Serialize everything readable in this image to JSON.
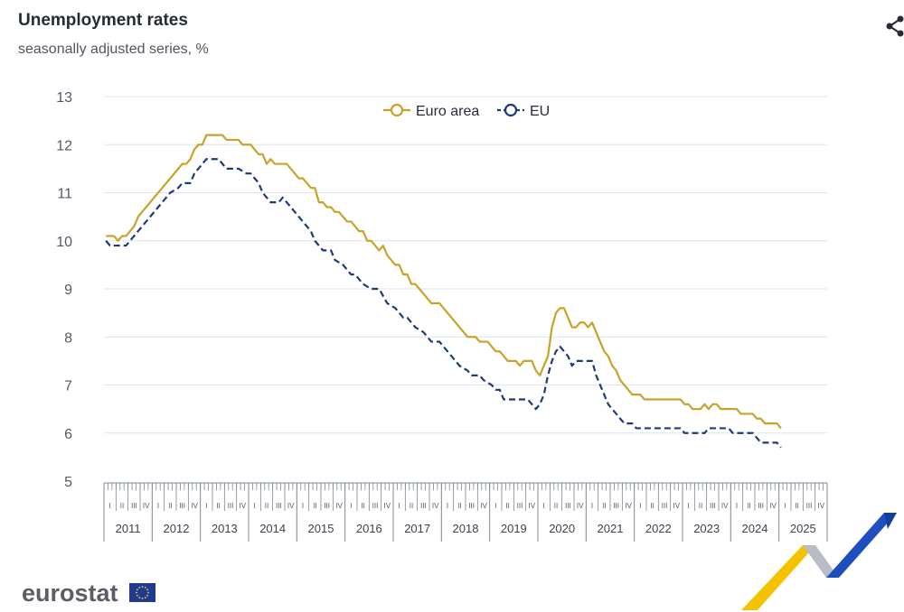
{
  "header": {
    "title": "Unemployment rates",
    "subtitle": "seasonally adjusted series, %"
  },
  "brand": {
    "name": "eurostat"
  },
  "icons": {
    "share": "share-icon",
    "flag": "eu-flag-icon"
  },
  "colors": {
    "euro_area": "#c9a227",
    "eu": "#1f3a7a",
    "grid": "#dde3f0",
    "axis": "#7d8799"
  },
  "chart_data": {
    "type": "line",
    "title": "Unemployment rates",
    "subtitle": "seasonally adjusted series, %",
    "xlabel": "",
    "ylabel": "",
    "ylim": [
      5,
      13
    ],
    "yticks": [
      5,
      6,
      7,
      8,
      9,
      10,
      11,
      12,
      13
    ],
    "quarter_labels": [
      "I",
      "II",
      "III",
      "IV"
    ],
    "years": [
      "2011",
      "2012",
      "2013",
      "2014",
      "2015",
      "2016",
      "2017",
      "2018",
      "2019",
      "2020",
      "2021",
      "2022",
      "2023",
      "2024",
      "2025"
    ],
    "grid": true,
    "legend": "top-center",
    "series": [
      {
        "name": "Euro area",
        "style": "solid",
        "points": [
          [
            "2011-01",
            10.1
          ],
          [
            "2011-03",
            10.1
          ],
          [
            "2011-04",
            10.0
          ],
          [
            "2011-05",
            10.1
          ],
          [
            "2011-06",
            10.1
          ],
          [
            "2011-07",
            10.2
          ],
          [
            "2011-08",
            10.3
          ],
          [
            "2011-09",
            10.5
          ],
          [
            "2011-11",
            10.7
          ],
          [
            "2012-01",
            10.9
          ],
          [
            "2012-03",
            11.1
          ],
          [
            "2012-05",
            11.3
          ],
          [
            "2012-07",
            11.5
          ],
          [
            "2012-08",
            11.6
          ],
          [
            "2012-09",
            11.6
          ],
          [
            "2012-10",
            11.7
          ],
          [
            "2012-11",
            11.9
          ],
          [
            "2012-12",
            12.0
          ],
          [
            "2013-01",
            12.0
          ],
          [
            "2013-02",
            12.2
          ],
          [
            "2013-06",
            12.2
          ],
          [
            "2013-07",
            12.1
          ],
          [
            "2013-10",
            12.1
          ],
          [
            "2013-11",
            12.0
          ],
          [
            "2014-01",
            12.0
          ],
          [
            "2014-02",
            11.9
          ],
          [
            "2014-03",
            11.8
          ],
          [
            "2014-04",
            11.8
          ],
          [
            "2014-05",
            11.6
          ],
          [
            "2014-06",
            11.7
          ],
          [
            "2014-07",
            11.6
          ],
          [
            "2014-10",
            11.6
          ],
          [
            "2014-12",
            11.4
          ],
          [
            "2015-01",
            11.3
          ],
          [
            "2015-02",
            11.3
          ],
          [
            "2015-03",
            11.2
          ],
          [
            "2015-04",
            11.1
          ],
          [
            "2015-05",
            11.1
          ],
          [
            "2015-06",
            10.8
          ],
          [
            "2015-07",
            10.8
          ],
          [
            "2015-08",
            10.7
          ],
          [
            "2015-09",
            10.7
          ],
          [
            "2015-10",
            10.6
          ],
          [
            "2015-11",
            10.6
          ],
          [
            "2015-12",
            10.5
          ],
          [
            "2016-01",
            10.4
          ],
          [
            "2016-02",
            10.4
          ],
          [
            "2016-03",
            10.3
          ],
          [
            "2016-04",
            10.2
          ],
          [
            "2016-05",
            10.2
          ],
          [
            "2016-06",
            10.0
          ],
          [
            "2016-07",
            10.0
          ],
          [
            "2016-08",
            9.9
          ],
          [
            "2016-09",
            9.8
          ],
          [
            "2016-10",
            9.9
          ],
          [
            "2016-11",
            9.7
          ],
          [
            "2016-12",
            9.6
          ],
          [
            "2017-01",
            9.5
          ],
          [
            "2017-02",
            9.5
          ],
          [
            "2017-03",
            9.3
          ],
          [
            "2017-04",
            9.3
          ],
          [
            "2017-05",
            9.1
          ],
          [
            "2017-06",
            9.1
          ],
          [
            "2017-07",
            9.0
          ],
          [
            "2017-08",
            8.9
          ],
          [
            "2017-09",
            8.8
          ],
          [
            "2017-10",
            8.7
          ],
          [
            "2017-12",
            8.7
          ],
          [
            "2018-01",
            8.6
          ],
          [
            "2018-03",
            8.4
          ],
          [
            "2018-05",
            8.2
          ],
          [
            "2018-07",
            8.0
          ],
          [
            "2018-09",
            8.0
          ],
          [
            "2018-10",
            7.9
          ],
          [
            "2018-12",
            7.9
          ],
          [
            "2019-01",
            7.8
          ],
          [
            "2019-02",
            7.7
          ],
          [
            "2019-03",
            7.7
          ],
          [
            "2019-04",
            7.6
          ],
          [
            "2019-05",
            7.5
          ],
          [
            "2019-07",
            7.5
          ],
          [
            "2019-08",
            7.4
          ],
          [
            "2019-09",
            7.5
          ],
          [
            "2019-10",
            7.5
          ],
          [
            "2019-11",
            7.5
          ],
          [
            "2019-12",
            7.3
          ],
          [
            "2020-01",
            7.2
          ],
          [
            "2020-02",
            7.4
          ],
          [
            "2020-03",
            7.6
          ],
          [
            "2020-04",
            8.2
          ],
          [
            "2020-05",
            8.5
          ],
          [
            "2020-06",
            8.6
          ],
          [
            "2020-07",
            8.6
          ],
          [
            "2020-08",
            8.4
          ],
          [
            "2020-09",
            8.2
          ],
          [
            "2020-10",
            8.2
          ],
          [
            "2020-11",
            8.3
          ],
          [
            "2020-12",
            8.3
          ],
          [
            "2021-01",
            8.2
          ],
          [
            "2021-02",
            8.3
          ],
          [
            "2021-03",
            8.1
          ],
          [
            "2021-04",
            7.9
          ],
          [
            "2021-05",
            7.7
          ],
          [
            "2021-06",
            7.6
          ],
          [
            "2021-07",
            7.4
          ],
          [
            "2021-08",
            7.3
          ],
          [
            "2021-09",
            7.1
          ],
          [
            "2021-10",
            7.0
          ],
          [
            "2021-11",
            6.9
          ],
          [
            "2021-12",
            6.8
          ],
          [
            "2022-02",
            6.8
          ],
          [
            "2022-03",
            6.7
          ],
          [
            "2022-12",
            6.7
          ],
          [
            "2023-01",
            6.6
          ],
          [
            "2023-02",
            6.6
          ],
          [
            "2023-03",
            6.5
          ],
          [
            "2023-04",
            6.5
          ],
          [
            "2023-05",
            6.5
          ],
          [
            "2023-06",
            6.6
          ],
          [
            "2023-07",
            6.5
          ],
          [
            "2023-08",
            6.6
          ],
          [
            "2023-09",
            6.6
          ],
          [
            "2023-10",
            6.5
          ],
          [
            "2024-02",
            6.5
          ],
          [
            "2024-03",
            6.4
          ],
          [
            "2024-06",
            6.4
          ],
          [
            "2024-07",
            6.3
          ],
          [
            "2024-08",
            6.3
          ],
          [
            "2024-09",
            6.2
          ],
          [
            "2024-12",
            6.2
          ],
          [
            "2025-01",
            6.1
          ]
        ]
      },
      {
        "name": "EU",
        "style": "dashed",
        "points": [
          [
            "2011-01",
            10.0
          ],
          [
            "2011-02",
            9.9
          ],
          [
            "2011-06",
            9.9
          ],
          [
            "2011-07",
            10.0
          ],
          [
            "2011-09",
            10.2
          ],
          [
            "2011-11",
            10.4
          ],
          [
            "2012-01",
            10.6
          ],
          [
            "2012-03",
            10.8
          ],
          [
            "2012-05",
            11.0
          ],
          [
            "2012-07",
            11.1
          ],
          [
            "2012-08",
            11.2
          ],
          [
            "2012-10",
            11.2
          ],
          [
            "2012-11",
            11.4
          ],
          [
            "2013-01",
            11.6
          ],
          [
            "2013-02",
            11.7
          ],
          [
            "2013-05",
            11.7
          ],
          [
            "2013-07",
            11.5
          ],
          [
            "2013-10",
            11.5
          ],
          [
            "2013-12",
            11.4
          ],
          [
            "2014-01",
            11.4
          ],
          [
            "2014-03",
            11.2
          ],
          [
            "2014-04",
            11.0
          ],
          [
            "2014-06",
            10.8
          ],
          [
            "2014-08",
            10.8
          ],
          [
            "2014-09",
            10.9
          ],
          [
            "2014-11",
            10.7
          ],
          [
            "2014-12",
            10.6
          ],
          [
            "2015-01",
            10.5
          ],
          [
            "2015-03",
            10.3
          ],
          [
            "2015-04",
            10.2
          ],
          [
            "2015-05",
            10.0
          ],
          [
            "2015-07",
            9.8
          ],
          [
            "2015-09",
            9.8
          ],
          [
            "2015-10",
            9.6
          ],
          [
            "2015-12",
            9.5
          ],
          [
            "2016-02",
            9.3
          ],
          [
            "2016-03",
            9.3
          ],
          [
            "2016-05",
            9.1
          ],
          [
            "2016-07",
            9.0
          ],
          [
            "2016-09",
            9.0
          ],
          [
            "2016-11",
            8.7
          ],
          [
            "2017-01",
            8.6
          ],
          [
            "2017-03",
            8.4
          ],
          [
            "2017-04",
            8.4
          ],
          [
            "2017-06",
            8.2
          ],
          [
            "2017-08",
            8.1
          ],
          [
            "2017-10",
            7.9
          ],
          [
            "2017-12",
            7.9
          ],
          [
            "2018-01",
            7.8
          ],
          [
            "2018-03",
            7.6
          ],
          [
            "2018-05",
            7.4
          ],
          [
            "2018-07",
            7.3
          ],
          [
            "2018-08",
            7.2
          ],
          [
            "2018-10",
            7.2
          ],
          [
            "2018-11",
            7.1
          ],
          [
            "2019-01",
            7.0
          ],
          [
            "2019-02",
            6.9
          ],
          [
            "2019-03",
            6.9
          ],
          [
            "2019-04",
            6.7
          ],
          [
            "2019-06",
            6.7
          ],
          [
            "2019-10",
            6.7
          ],
          [
            "2019-11",
            6.6
          ],
          [
            "2019-12",
            6.5
          ],
          [
            "2020-01",
            6.6
          ],
          [
            "2020-02",
            6.8
          ],
          [
            "2020-03",
            7.2
          ],
          [
            "2020-04",
            7.5
          ],
          [
            "2020-05",
            7.7
          ],
          [
            "2020-06",
            7.8
          ],
          [
            "2020-07",
            7.7
          ],
          [
            "2020-08",
            7.6
          ],
          [
            "2020-09",
            7.4
          ],
          [
            "2020-10",
            7.5
          ],
          [
            "2021-02",
            7.5
          ],
          [
            "2021-03",
            7.2
          ],
          [
            "2021-04",
            7.0
          ],
          [
            "2021-05",
            6.8
          ],
          [
            "2021-06",
            6.6
          ],
          [
            "2021-07",
            6.5
          ],
          [
            "2021-08",
            6.4
          ],
          [
            "2021-09",
            6.3
          ],
          [
            "2021-10",
            6.2
          ],
          [
            "2021-12",
            6.2
          ],
          [
            "2022-01",
            6.1
          ],
          [
            "2022-12",
            6.1
          ],
          [
            "2023-01",
            6.0
          ],
          [
            "2023-06",
            6.0
          ],
          [
            "2023-07",
            6.1
          ],
          [
            "2023-12",
            6.1
          ],
          [
            "2024-01",
            6.0
          ],
          [
            "2024-06",
            6.0
          ],
          [
            "2024-07",
            5.9
          ],
          [
            "2024-08",
            5.8
          ],
          [
            "2024-12",
            5.8
          ],
          [
            "2025-01",
            5.7
          ]
        ]
      }
    ]
  }
}
